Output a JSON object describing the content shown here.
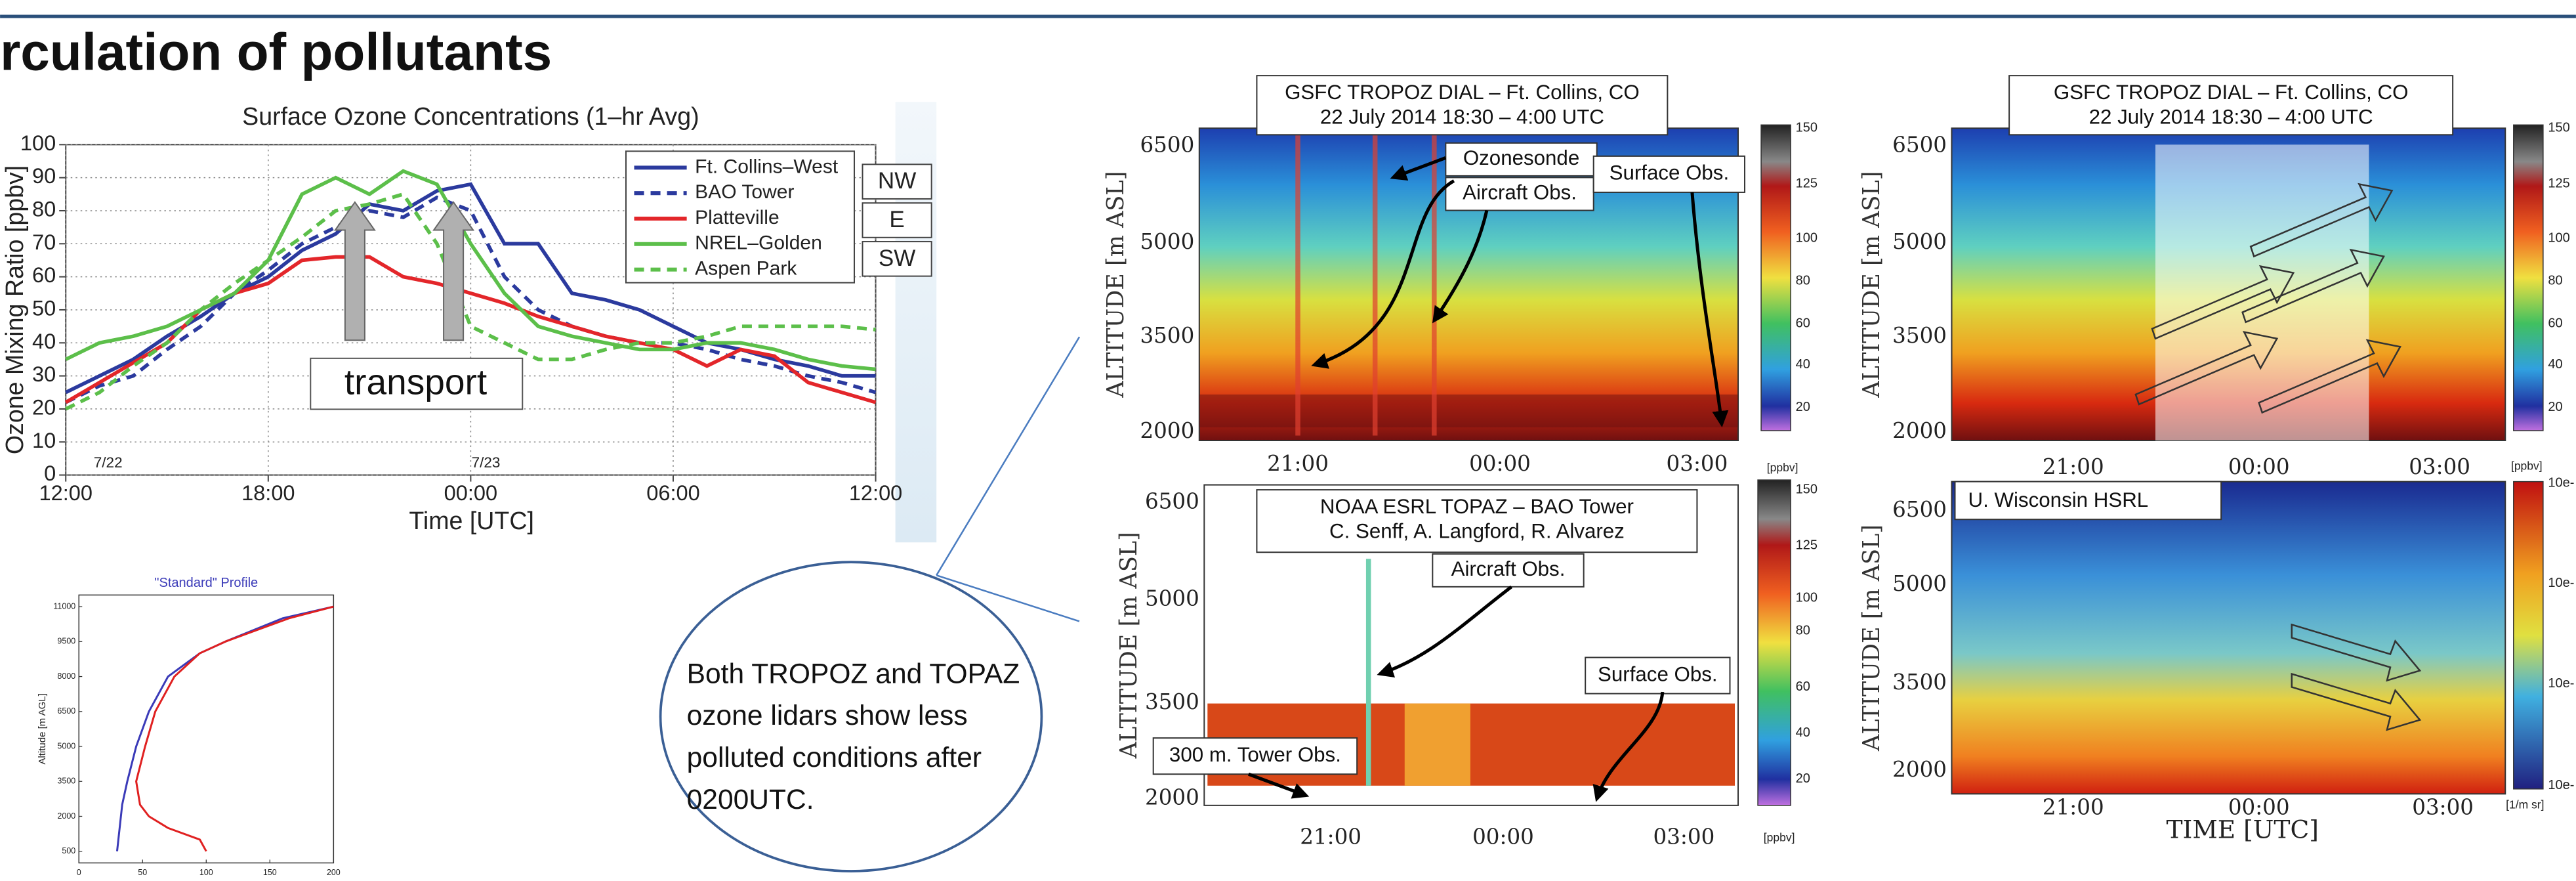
{
  "header": {
    "title": "rculation of pollutants"
  },
  "chart_data": [
    {
      "type": "line",
      "title": "Surface Ozone Concentrations (1–hr Avg)",
      "x_label": "Time [UTC]",
      "y_label": "Ozone Mixing Ratio [ppbv]",
      "x": [
        0,
        1,
        2,
        3,
        4,
        5,
        6,
        7,
        8,
        9,
        10,
        11,
        12,
        13,
        14,
        15,
        16,
        17,
        18,
        19,
        20,
        21,
        22,
        23,
        24
      ],
      "xlim": [
        0,
        24
      ],
      "xticks": [
        {
          "value": 0,
          "label": "12:00"
        },
        {
          "value": 6,
          "label": "18:00"
        },
        {
          "value": 12,
          "label": "00:00"
        },
        {
          "value": 18,
          "label": "06:00"
        },
        {
          "value": 24,
          "label": "12:00"
        }
      ],
      "ylim": [
        0,
        100
      ],
      "yticks": [
        0,
        10,
        20,
        30,
        40,
        50,
        60,
        70,
        80,
        90,
        100
      ],
      "grid": true,
      "series": [
        {
          "name": "Ft. Collins–West",
          "color": "#2b3a9e",
          "line_style": "solid",
          "values": [
            25,
            30,
            35,
            42,
            48,
            55,
            60,
            68,
            73,
            82,
            80,
            86,
            88,
            70,
            70,
            55,
            53,
            50,
            45,
            40,
            38,
            35,
            33,
            30,
            30
          ]
        },
        {
          "name": "BAO Tower",
          "color": "#2b3a9e",
          "line_style": "dashed",
          "values": [
            22,
            27,
            30,
            38,
            45,
            55,
            62,
            70,
            75,
            80,
            78,
            84,
            80,
            60,
            50,
            45,
            42,
            40,
            40,
            38,
            35,
            33,
            30,
            28,
            25
          ]
        },
        {
          "name": "Platteville",
          "color": "#e3262a",
          "line_style": "solid",
          "values": [
            22,
            28,
            34,
            40,
            50,
            55,
            58,
            65,
            66,
            66,
            60,
            58,
            55,
            52,
            48,
            45,
            42,
            40,
            38,
            33,
            38,
            36,
            28,
            25,
            22
          ]
        },
        {
          "name": "NREL–Golden",
          "color": "#5cbf4a",
          "line_style": "solid",
          "values": [
            35,
            40,
            42,
            45,
            50,
            55,
            65,
            85,
            90,
            85,
            92,
            88,
            70,
            55,
            45,
            42,
            40,
            38,
            38,
            40,
            40,
            38,
            35,
            33,
            32
          ]
        },
        {
          "name": "Aspen Park",
          "color": "#5cbf4a",
          "line_style": "dashed",
          "values": [
            20,
            25,
            33,
            40,
            50,
            58,
            65,
            72,
            80,
            82,
            85,
            70,
            45,
            40,
            35,
            35,
            38,
            40,
            40,
            42,
            45,
            45,
            45,
            45,
            44
          ]
        }
      ],
      "date_labels": [
        "7/22",
        "7/23"
      ],
      "legend_tags": [
        "NW",
        "E",
        "SW"
      ],
      "annotation": "transport"
    },
    {
      "type": "profile",
      "title": "\"Standard\" Profile",
      "y_label": "Altitude [m AGL]",
      "y": [
        500,
        1000,
        1500,
        2000,
        2500,
        3500,
        5000,
        6500,
        8000,
        9000,
        9500,
        10500,
        11000
      ],
      "ylim": [
        0,
        11500
      ],
      "yticks": [
        500,
        2000,
        3500,
        5000,
        6500,
        8000,
        9500,
        11000
      ],
      "xlim": [
        0,
        200
      ],
      "xticks": [
        0,
        50,
        100,
        150,
        200
      ],
      "series": [
        {
          "color": "#3a3ab8",
          "values": [
            30,
            31,
            32,
            33,
            34,
            38,
            45,
            55,
            70,
            95,
            115,
            160,
            200
          ]
        },
        {
          "color": "#e02020",
          "values": [
            100,
            95,
            70,
            55,
            48,
            45,
            52,
            60,
            75,
            95,
            115,
            165,
            200
          ]
        }
      ]
    }
  ],
  "panels": [
    {
      "title": "GSFC TROPOZ DIAL – Ft. Collins, CO",
      "subtitle": "22 July 2014 18:30 – 4:00 UTC",
      "y_label": "ALTITUDE [m ASL]",
      "yticks": [
        6500,
        5000,
        3500,
        2000
      ],
      "xticks": [
        "21:00",
        "00:00",
        "03:00"
      ],
      "colorbar_ticks": [
        150,
        125,
        100,
        80,
        60,
        40,
        20
      ],
      "colorbar_unit": "[ppbv]",
      "annotations": [
        "Ozonesonde",
        "Aircraft Obs.",
        "Surface Obs."
      ]
    },
    {
      "title": "GSFC TROPOZ DIAL – Ft. Collins, CO",
      "subtitle": "22 July 2014 18:30 – 4:00 UTC",
      "y_label": "ALTITUDE [m ASL]",
      "yticks": [
        6500,
        5000,
        3500,
        2000
      ],
      "xticks": [
        "21:00",
        "00:00",
        "03:00"
      ],
      "colorbar_ticks": [
        150,
        125,
        100,
        80,
        60,
        40,
        20
      ],
      "colorbar_unit": "[ppbv]"
    },
    {
      "title": "NOAA ESRL TOPAZ – BAO Tower",
      "subtitle": "C. Senff, A. Langford, R. Alvarez",
      "y_label": "ALTITUDE [m ASL]",
      "yticks": [
        6500,
        5000,
        3500,
        2000
      ],
      "xticks": [
        "21:00",
        "00:00",
        "03:00"
      ],
      "colorbar_ticks": [
        150,
        125,
        100,
        80,
        60,
        40,
        20
      ],
      "colorbar_unit": "[ppbv]",
      "annotations": [
        "Aircraft Obs.",
        "Surface Obs.",
        "300 m. Tower Obs."
      ]
    },
    {
      "title": "U. Wisconsin HSRL",
      "y_label": "ALTITUDE [m ASL]",
      "x_label": "TIME [UTC]",
      "yticks": [
        6500,
        5000,
        3500,
        2000
      ],
      "xticks": [
        "21:00",
        "00:00",
        "03:00"
      ],
      "colorbar_ticks": [
        "10e-",
        "10e-",
        "10e-",
        "10e-"
      ],
      "colorbar_unit": "[1/m sr]"
    }
  ],
  "callout": {
    "lines": [
      "Both TROPOZ  and TOPAZ",
      "ozone lidars show less",
      "polluted conditions after",
      "0200UTC."
    ]
  }
}
